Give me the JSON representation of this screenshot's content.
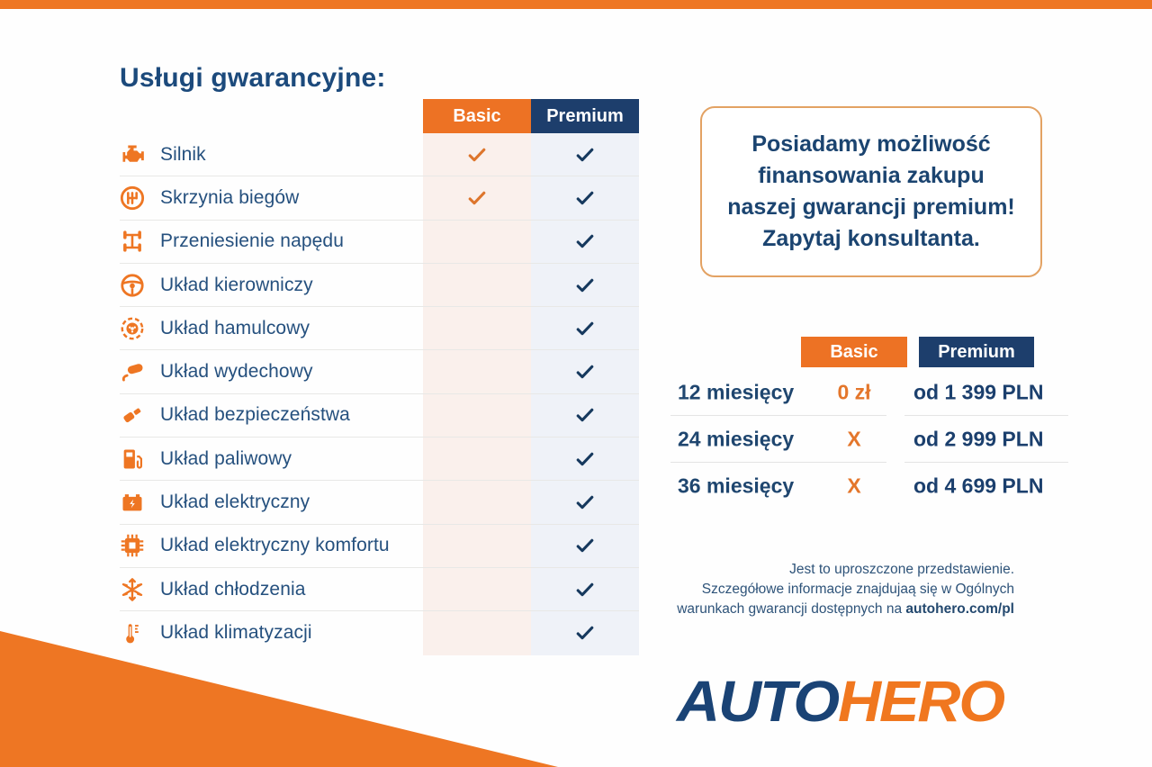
{
  "page": {
    "title": "Usługi gwarancyjne:"
  },
  "services_table": {
    "columns": [
      {
        "label": "Basic"
      },
      {
        "label": "Premium"
      }
    ],
    "rows": [
      {
        "icon": "engine-icon",
        "label": "Silnik",
        "basic": true,
        "premium": true
      },
      {
        "icon": "gearbox-icon",
        "label": "Skrzynia biegów",
        "basic": true,
        "premium": true
      },
      {
        "icon": "drivetrain-icon",
        "label": "Przeniesienie napędu",
        "basic": false,
        "premium": true
      },
      {
        "icon": "steering-wheel-icon",
        "label": "Układ kierowniczy",
        "basic": false,
        "premium": true
      },
      {
        "icon": "brake-icon",
        "label": "Układ hamulcowy",
        "basic": false,
        "premium": true
      },
      {
        "icon": "exhaust-icon",
        "label": "Układ wydechowy",
        "basic": false,
        "premium": true
      },
      {
        "icon": "seatbelt-icon",
        "label": "Układ bezpieczeństwa",
        "basic": false,
        "premium": true
      },
      {
        "icon": "fuel-pump-icon",
        "label": "Układ paliwowy",
        "basic": false,
        "premium": true
      },
      {
        "icon": "battery-icon",
        "label": "Układ elektryczny",
        "basic": false,
        "premium": true
      },
      {
        "icon": "chip-icon",
        "label": "Układ elektryczny komfortu",
        "basic": false,
        "premium": true
      },
      {
        "icon": "snowflake-icon",
        "label": "Układ chłodzenia",
        "basic": false,
        "premium": true
      },
      {
        "icon": "thermometer-icon",
        "label": "Układ klimatyzacji",
        "basic": false,
        "premium": true
      }
    ]
  },
  "promo_box": {
    "lines": [
      "Posiadamy możliwość",
      "finansowania zakupu",
      "naszej gwarancji premium!",
      "Zapytaj konsultanta."
    ]
  },
  "pricing_table": {
    "columns": [
      {
        "label": "Basic"
      },
      {
        "label": "Premium"
      }
    ],
    "rows": [
      {
        "period": "12 miesięcy",
        "basic": "0 zł",
        "premium": "od 1 399 PLN"
      },
      {
        "period": "24 miesięcy",
        "basic": "X",
        "premium": "od 2 999 PLN"
      },
      {
        "period": "36 miesięcy",
        "basic": "X",
        "premium": "od 4 699 PLN"
      }
    ]
  },
  "disclaimer": {
    "line1": "Jest to uproszczone przedstawienie.",
    "line2": "Szczegółowe informacje znajdujaą się w Ogólnych",
    "line3_prefix": "warunkach gwarancji dostępnych na ",
    "line3_bold": "autohero.com/pl"
  },
  "logo": {
    "part1": "AUTO",
    "part2": "HERO"
  },
  "colors": {
    "orange": "#EE7623",
    "navy_header": "#1D3E6C",
    "text_navy": "#25507E",
    "basic_tint": "#FAF0EC",
    "premium_tint": "#EFF2F8"
  }
}
